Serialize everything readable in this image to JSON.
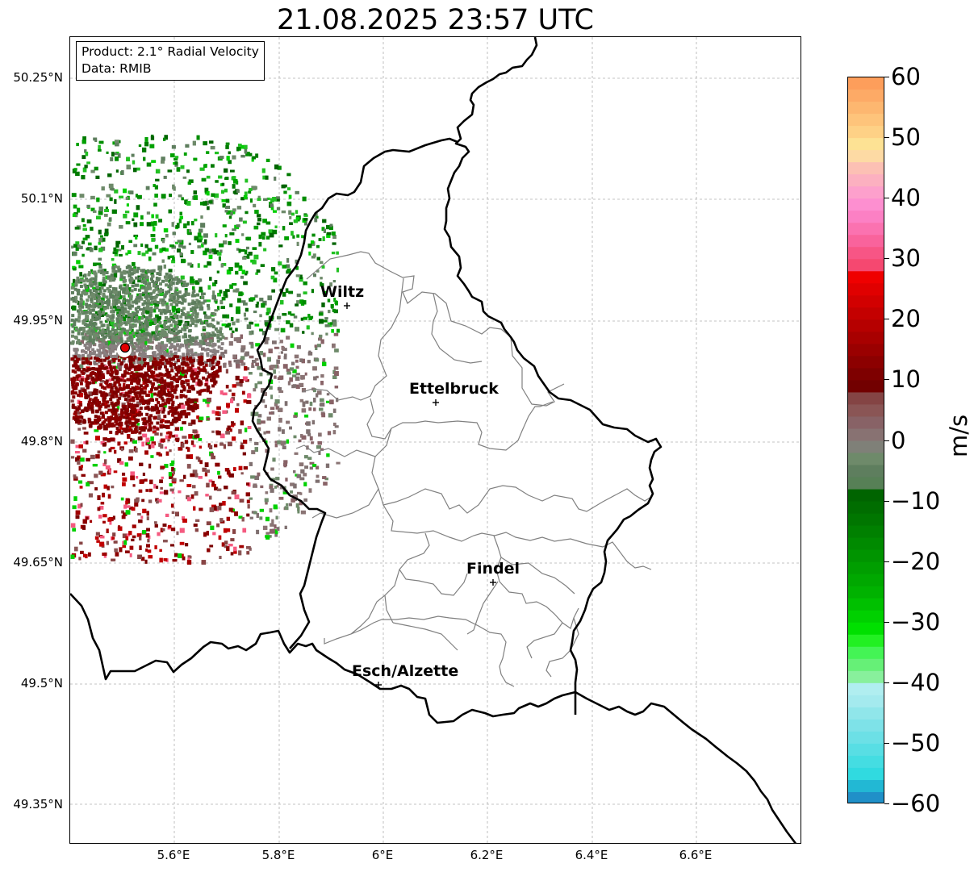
{
  "title": "21.08.2025 23:57 UTC",
  "info": {
    "product_line": "Product: 2.1° Radial Velocity",
    "data_line": "Data: RMIB"
  },
  "lat_ticks": [
    "50.25°N",
    "50.1°N",
    "49.95°N",
    "49.8°N",
    "49.65°N",
    "49.5°N",
    "49.35°N"
  ],
  "lon_ticks": [
    "5.6°E",
    "5.8°E",
    "6°E",
    "6.2°E",
    "6.4°E",
    "6.6°E"
  ],
  "colorbar": {
    "label": "m/s",
    "ticks": [
      "60",
      "50",
      "40",
      "30",
      "20",
      "10",
      "0",
      "−10",
      "−20",
      "−30",
      "−40",
      "−50",
      "−60"
    ],
    "range": [
      -60,
      60
    ]
  },
  "cities": [
    {
      "name": "Wiltz"
    },
    {
      "name": "Ettelbruck"
    },
    {
      "name": "Findel"
    },
    {
      "name": "Esch/Alzette"
    }
  ],
  "colors": {
    "border": "#000000",
    "district": "#808080",
    "radar_site": "#e00000",
    "positive_velocity": "#8b0000",
    "negative_velocity": "#008000",
    "near_zero": "#6b7f6b"
  }
}
